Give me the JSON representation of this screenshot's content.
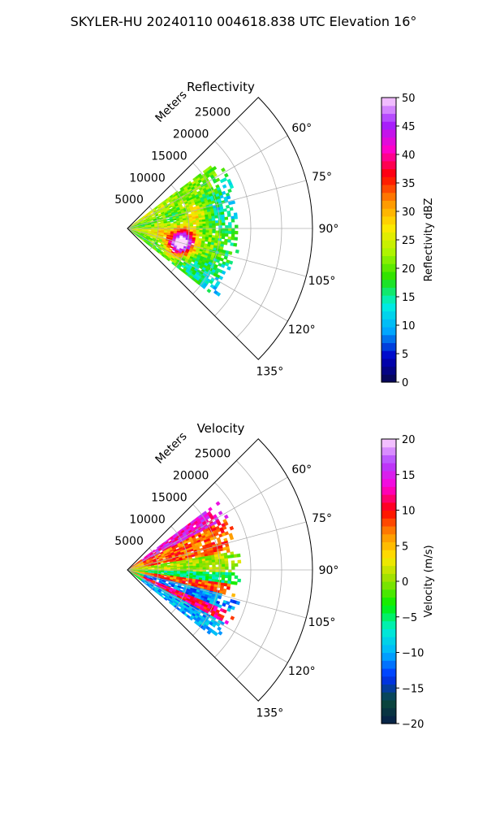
{
  "figure": {
    "suptitle": "SKYLER-HU  20240110  004618.838 UTC Elevation 16°"
  },
  "chart_data": [
    {
      "type": "heatmap",
      "subtype": "polar-sector (PPI radar scan)",
      "title": "Reflectivity",
      "range_label": "Meters",
      "range_ticks": [
        5000,
        10000,
        15000,
        20000,
        25000
      ],
      "range_tick_labels": [
        "5000",
        "10000",
        "15000",
        "20000",
        "25000"
      ],
      "range_max": 30000,
      "azimuth_ticks": [
        60,
        75,
        90,
        105,
        120,
        135
      ],
      "azimuth_tick_labels": [
        "60°",
        "75°",
        "90°",
        "105°",
        "120°",
        "135°"
      ],
      "azimuth_limits": [
        45,
        135
      ],
      "grid": true,
      "data_extent": {
        "azimuth_min": 53,
        "azimuth_max": 127,
        "range_max": 17500
      },
      "features": [
        {
          "azimuth": 77,
          "range": 11000,
          "value": 34
        },
        {
          "azimuth": 98,
          "range": 9000,
          "value": 36
        },
        {
          "azimuth": 106,
          "range": 9500,
          "value": 38
        },
        {
          "azimuth": 110,
          "range": 8000,
          "value": 37
        },
        {
          "azimuth": 88,
          "range": 5000,
          "value": 27
        },
        {
          "azimuth": 120,
          "range": 13000,
          "value": 21
        }
      ],
      "colorbar": {
        "label": "Reflectivity dBZ",
        "min": 0,
        "max": 50,
        "ticks": [
          0,
          5,
          10,
          15,
          20,
          25,
          30,
          35,
          40,
          45,
          50
        ],
        "tick_labels": [
          "0",
          "5",
          "10",
          "15",
          "20",
          "25",
          "30",
          "35",
          "40",
          "45",
          "50"
        ],
        "stops": [
          "#07084a",
          "#0000c8",
          "#00a8ff",
          "#00f0e0",
          "#22e000",
          "#aaf500",
          "#ffe800",
          "#ff9000",
          "#ff0000",
          "#ff00c8",
          "#a020ff",
          "#ffd8ff"
        ]
      }
    },
    {
      "type": "heatmap",
      "subtype": "polar-sector (PPI radar scan)",
      "title": "Velocity",
      "range_label": "Meters",
      "range_ticks": [
        5000,
        10000,
        15000,
        20000,
        25000
      ],
      "range_tick_labels": [
        "5000",
        "10000",
        "15000",
        "20000",
        "25000"
      ],
      "range_max": 30000,
      "azimuth_ticks": [
        60,
        75,
        90,
        105,
        120,
        135
      ],
      "azimuth_tick_labels": [
        "60°",
        "75°",
        "90°",
        "105°",
        "120°",
        "135°"
      ],
      "azimuth_limits": [
        45,
        135
      ],
      "grid": true,
      "data_extent": {
        "azimuth_min": 53,
        "azimuth_max": 127,
        "range_max": 17500
      },
      "bands": [
        {
          "az_from": 53,
          "az_to": 62,
          "value": 14
        },
        {
          "az_from": 62,
          "az_to": 80,
          "value": 8
        },
        {
          "az_from": 80,
          "az_to": 90,
          "value": 1
        },
        {
          "az_from": 90,
          "az_to": 97,
          "value": -5
        },
        {
          "az_from": 97,
          "az_to": 103,
          "value": 8
        },
        {
          "az_from": 103,
          "az_to": 111,
          "value": -11
        },
        {
          "az_from": 111,
          "az_to": 118,
          "value": 11
        },
        {
          "az_from": 118,
          "az_to": 127,
          "value": -10
        }
      ],
      "colorbar": {
        "label": "Velocity (m/s)",
        "min": -20,
        "max": 20,
        "ticks": [
          -20,
          -15,
          -10,
          -5,
          0,
          5,
          10,
          15,
          20
        ],
        "tick_labels": [
          "−20",
          "−15",
          "−10",
          "−5",
          "0",
          "5",
          "10",
          "15",
          "20"
        ],
        "stops": [
          "#071e4a",
          "#0a4a3a",
          "#0030ff",
          "#00b4ff",
          "#00f0d0",
          "#00f000",
          "#90e000",
          "#ffe800",
          "#ff9000",
          "#ff0000",
          "#ff00d8",
          "#b040ff",
          "#ffd8ff"
        ]
      }
    }
  ]
}
